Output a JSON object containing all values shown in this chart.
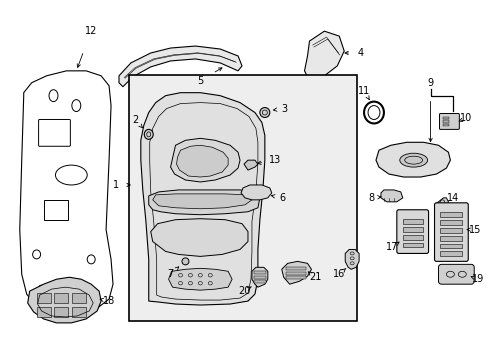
{
  "bg_color": "#ffffff",
  "line_color": "#000000",
  "gray_fill": "#e8e8e8",
  "gray_light": "#f2f2f2",
  "gray_mid": "#d0d0d0",
  "gray_dark": "#b0b0b0"
}
